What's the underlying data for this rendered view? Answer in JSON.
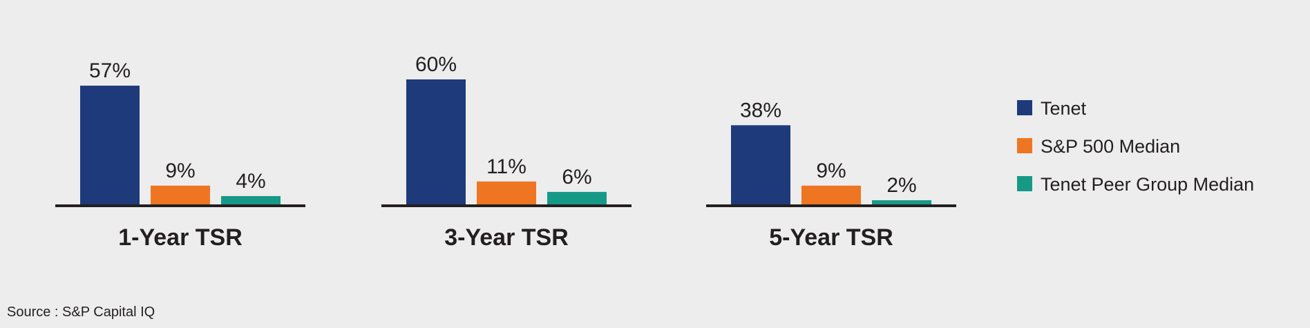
{
  "chart_data": {
    "type": "bar",
    "categories": [
      "1-Year TSR",
      "3-Year TSR",
      "5-Year TSR"
    ],
    "series": [
      {
        "name": "Tenet",
        "color": "#1e3a7b",
        "values": [
          57,
          60,
          38
        ],
        "labels": [
          "57%",
          "60%",
          "38%"
        ]
      },
      {
        "name": "S&P 500 Median",
        "color": "#ee7623",
        "values": [
          9,
          11,
          9
        ],
        "labels": [
          "9%",
          "11%",
          "9%"
        ]
      },
      {
        "name": "Tenet Peer Group Median",
        "color": "#169a87",
        "values": [
          4,
          6,
          2
        ],
        "labels": [
          "4%",
          "6%",
          "2%"
        ]
      }
    ],
    "ylim": [
      0,
      60
    ],
    "grid": false,
    "legend_placement": "right",
    "source": "Source : S&P Capital IQ"
  }
}
